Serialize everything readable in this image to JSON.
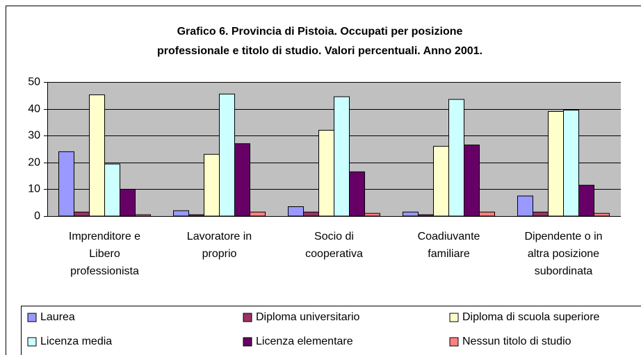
{
  "chart_data": {
    "type": "bar",
    "title": "Grafico 6. Provincia di Pistoia. Occupati per posizione\nprofessionale e titolo di studio. Valori percentuali. Anno 2001.",
    "categories": [
      "Imprenditore e\nLibero\nprofessionista",
      "Lavoratore in\nproprio",
      "Socio di\ncooperativa",
      "Coadiuvante\nfamiliare",
      "Dipendente o in\naltra posizione\nsubordinata"
    ],
    "series": [
      {
        "name": "Laurea",
        "color": "#9999ff",
        "values": [
          24,
          2,
          3.5,
          1.5,
          7.5
        ]
      },
      {
        "name": "Diploma universitario",
        "color": "#993366",
        "values": [
          1.5,
          0.5,
          1.5,
          0.5,
          1.5
        ]
      },
      {
        "name": "Diploma di scuola superiore",
        "color": "#ffffcc",
        "values": [
          45.2,
          23,
          32,
          26,
          39
        ]
      },
      {
        "name": "Licenza media",
        "color": "#ccffff",
        "values": [
          19.4,
          45.5,
          44.5,
          43.5,
          39.5
        ]
      },
      {
        "name": "Licenza elementare",
        "color": "#660066",
        "values": [
          10,
          27,
          16.5,
          26.5,
          11.5
        ]
      },
      {
        "name": "Nessun titolo di studio",
        "color": "#ff8080",
        "values": [
          0.5,
          1.5,
          1,
          1.5,
          1
        ]
      }
    ],
    "ylim": [
      0,
      50
    ],
    "yticks": [
      0,
      10,
      20,
      30,
      40,
      50
    ],
    "grid": true,
    "legend": "bottom"
  }
}
